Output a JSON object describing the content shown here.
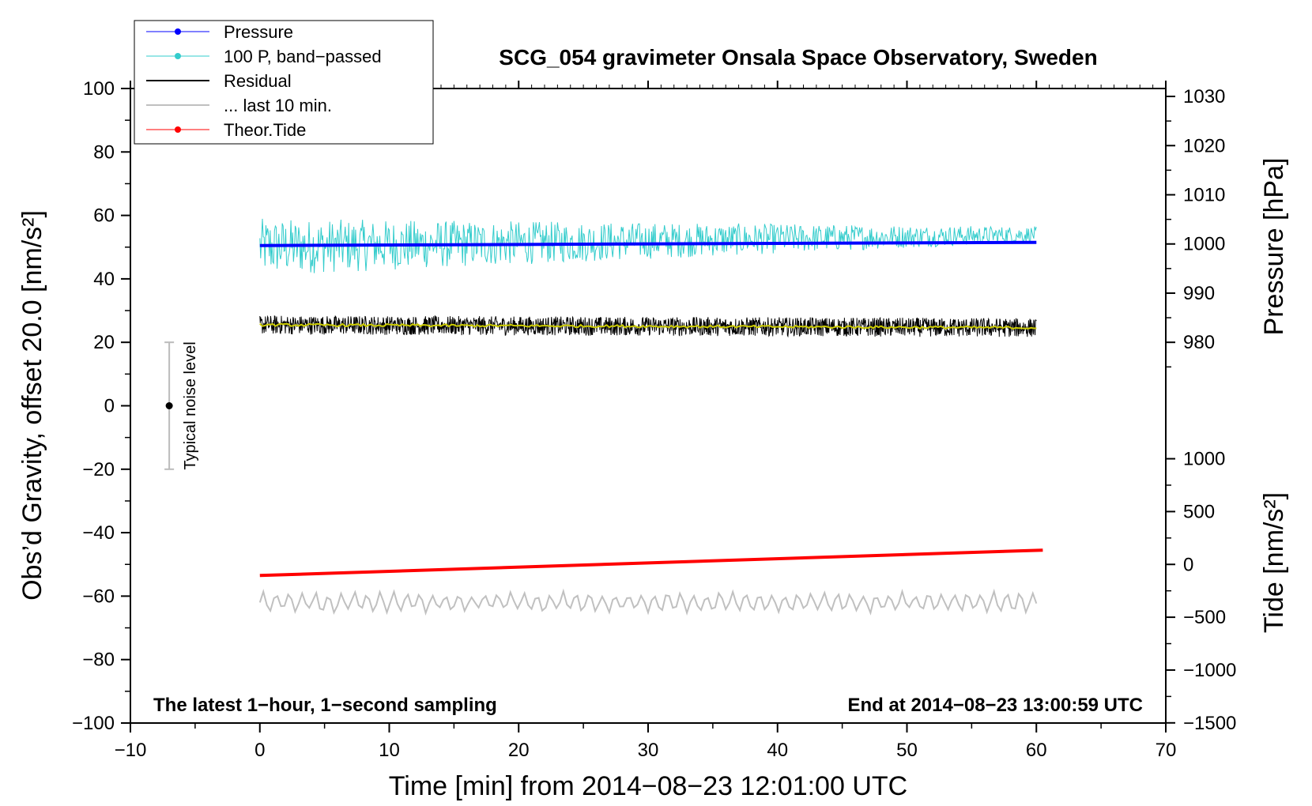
{
  "chart_data": {
    "type": "line",
    "title": "SCG_054 gravimeter Onsala Space Observatory, Sweden",
    "xlabel": "Time [min] from 2014−08−23 12:01:00 UTC",
    "ylabel_left": "Obs’d Gravity, offset 20.0 [nm/s²]",
    "ylabel_right_pressure": "Pressure [hPa]",
    "ylabel_right_tide": "Tide [nm/s²]",
    "xlim": [
      -10,
      70
    ],
    "ylim": [
      -100,
      100
    ],
    "xticks": [
      -10,
      0,
      10,
      20,
      30,
      40,
      50,
      60,
      70
    ],
    "xtick_labels": [
      "−10",
      "0",
      "10",
      "20",
      "30",
      "40",
      "50",
      "60",
      "70"
    ],
    "yticks": [
      -100,
      -80,
      -60,
      -40,
      -20,
      0,
      20,
      40,
      60,
      80,
      100
    ],
    "ytick_labels": [
      "−100",
      "−80",
      "−60",
      "−40",
      "−20",
      "0",
      "20",
      "40",
      "60",
      "80",
      "100"
    ],
    "pressure_axis": {
      "ticks": [
        980,
        990,
        1000,
        1010,
        1020,
        1030
      ],
      "tick_labels": [
        "980",
        "990",
        "1000",
        "1010",
        "1020",
        "1030"
      ],
      "gravity_at_980": 20,
      "gravity_per_hpa": 1.55
    },
    "tide_axis": {
      "ticks": [
        -1500,
        -1000,
        -500,
        0,
        500,
        1000
      ],
      "tick_labels": [
        "−1500",
        "−1000",
        "−500",
        "0",
        "500",
        "1000"
      ],
      "gravity_at_0": -50,
      "gravity_per_unit": 0.0333
    },
    "series": [
      {
        "name": "Pressure",
        "color": "#0000ff",
        "x": [
          0,
          60
        ],
        "y": [
          50.5,
          51.5
        ]
      },
      {
        "name": "100 P, band−passed",
        "color": "#33cccc",
        "x_range": [
          0,
          60
        ],
        "mean": 50,
        "amplitude_start": 9,
        "amplitude_end": 2.5
      },
      {
        "name": "Residual",
        "color": "#000000",
        "x_range": [
          0,
          60
        ],
        "mean": 25.5,
        "amplitude": 3
      },
      {
        "name": "Residual (smoothed)",
        "color": "#cccc00",
        "x_range": [
          0,
          60
        ],
        "mean": 25.5
      },
      {
        "name": "... last 10 min.",
        "color": "#c0c0c0",
        "x_range": [
          0,
          60
        ],
        "mean": -62,
        "amplitude": 3
      },
      {
        "name": "Theor.Tide",
        "color": "#ff0000",
        "x": [
          0,
          60.5
        ],
        "y": [
          -53.5,
          -45.5
        ]
      }
    ],
    "legend": [
      {
        "label": "Pressure",
        "color": "#0000ff",
        "marker": true
      },
      {
        "label": "100 P, band−passed",
        "color": "#33cccc",
        "marker": true
      },
      {
        "label": "Residual",
        "color": "#000000",
        "marker": false
      },
      {
        "label": "... last 10 min.",
        "color": "#c0c0c0",
        "marker": false
      },
      {
        "label": "Theor.Tide",
        "color": "#ff0000",
        "marker": true
      }
    ],
    "noise_bar": {
      "label": "Typical noise level",
      "x": -7,
      "center": 0,
      "low": -20,
      "high": 20
    },
    "annotations": {
      "bottom_left": "The latest 1−hour, 1−second sampling",
      "bottom_right": "End at 2014−08−23 13:00:59 UTC"
    }
  }
}
